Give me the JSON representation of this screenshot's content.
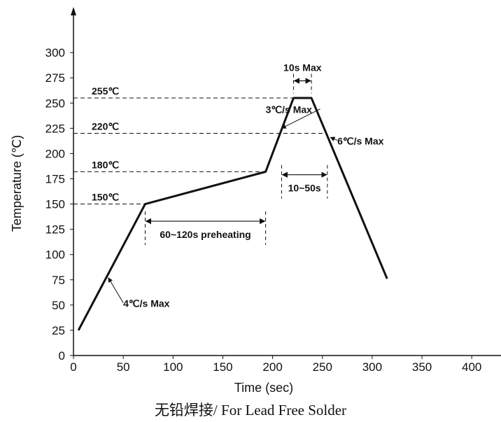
{
  "caption": "无铅焊接/ For Lead Free Solder",
  "chart_data": {
    "type": "line",
    "title": "",
    "xlabel": "Time (sec)",
    "ylabel": "Temperature (℃)",
    "xlim": [
      0,
      430
    ],
    "ylim": [
      0,
      300
    ],
    "x_ticks": [
      0,
      50,
      100,
      150,
      200,
      250,
      300,
      350,
      400
    ],
    "y_ticks": [
      0,
      25,
      50,
      75,
      100,
      125,
      150,
      175,
      200,
      225,
      250,
      275,
      300
    ],
    "grid": false,
    "series": [
      {
        "x": [
          5,
          72,
          193,
          221,
          239,
          315
        ],
        "y": [
          25,
          150,
          182,
          255,
          255,
          76
        ]
      }
    ],
    "reference_lines": [
      {
        "label": "255℃",
        "y": 255,
        "x_end": 239
      },
      {
        "label": "220℃",
        "y": 220,
        "x_end": 255
      },
      {
        "label": "180℃",
        "y": 182,
        "x_end": 193
      },
      {
        "label": "150℃",
        "y": 150,
        "x_end": 72
      }
    ],
    "intervals": [
      {
        "label": "60~120s preheating",
        "x_start": 72,
        "x_end": 193,
        "y": 133
      },
      {
        "label": "10~50s",
        "x_start": 209,
        "x_end": 255,
        "y": 179
      },
      {
        "label": "10s Max",
        "x_start": 221,
        "x_end": 239,
        "y": 272
      }
    ],
    "rate_annotations": [
      {
        "label": "4℃/s Max",
        "text_x": 50,
        "text_y": 48,
        "target_x": 35,
        "target_y": 77
      },
      {
        "label": "3℃/s Max",
        "text_x": 193,
        "text_y": 240,
        "target_x": 209,
        "target_y": 225
      },
      {
        "label": "6℃/s Max",
        "text_x": 265,
        "text_y": 209,
        "target_x": 258,
        "target_y": 216
      }
    ]
  }
}
